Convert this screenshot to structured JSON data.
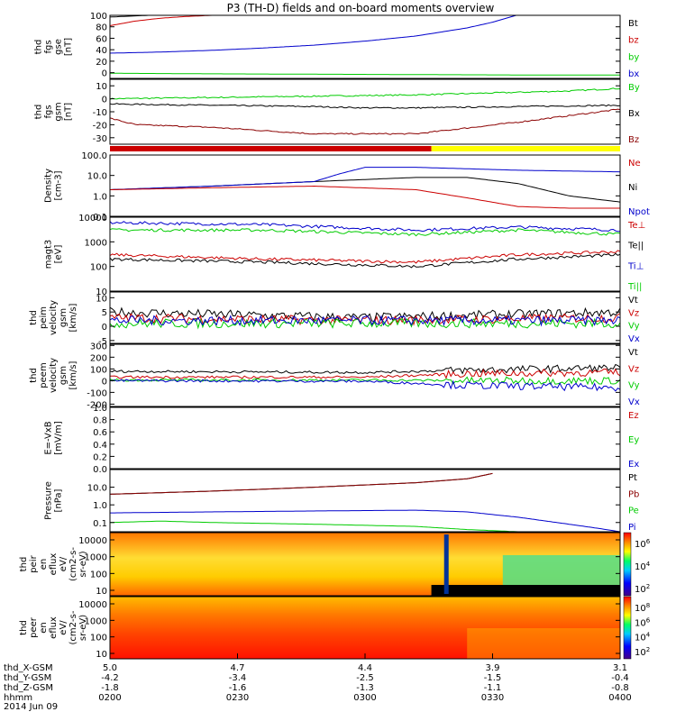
{
  "chart_data": {
    "type": "line",
    "title": "P3 (TH-D) fields and on-board moments overview",
    "colors": {
      "black": "#000000",
      "red": "#cc0000",
      "darkred": "#8b0000",
      "green": "#00cc00",
      "blue": "#0000cc",
      "yellow": "#ffff00"
    },
    "panels": [
      {
        "id": "fgs-gse",
        "ylabel": [
          "thd",
          "fgs",
          "gse",
          "[nT]"
        ],
        "ylim": [
          -10,
          100
        ],
        "ticks": [
          "100",
          "80",
          "60",
          "40",
          "20",
          "0"
        ],
        "legend": [
          {
            "label": "Bt",
            "color": "black"
          },
          {
            "label": "bz",
            "color": "red"
          },
          {
            "label": "by",
            "color": "green"
          },
          {
            "label": "bx",
            "color": "blue"
          }
        ],
        "series": [
          {
            "name": "Bt",
            "color": "black",
            "x": [
              0,
              0.05,
              0.1
            ],
            "y": [
              97,
              99,
              101
            ]
          },
          {
            "name": "bz",
            "color": "red",
            "x": [
              0,
              0.05,
              0.1,
              0.15,
              0.2,
              0.3
            ],
            "y": [
              82,
              90,
              95,
              98,
              100,
              103
            ]
          },
          {
            "name": "by",
            "color": "green",
            "x": [
              0,
              0.2,
              0.5,
              0.8,
              1.0
            ],
            "y": [
              -1,
              -2,
              -3,
              -4,
              -4
            ]
          },
          {
            "name": "bx",
            "color": "blue",
            "x": [
              0,
              0.1,
              0.2,
              0.3,
              0.4,
              0.5,
              0.6,
              0.7,
              0.75,
              0.8
            ],
            "y": [
              34,
              36,
              39,
              43,
              48,
              55,
              64,
              78,
              88,
              101
            ]
          }
        ]
      },
      {
        "id": "fgs-gsm",
        "ylabel": [
          "thd",
          "fgs",
          "gsm",
          "[nT]"
        ],
        "ylim": [
          -35,
          15
        ],
        "ticks": [
          "10",
          "0",
          "-10",
          "-20",
          "-30"
        ],
        "legend": [
          {
            "label": "By",
            "color": "green"
          },
          {
            "label": "Bx",
            "color": "black"
          },
          {
            "label": "Bz",
            "color": "darkred"
          }
        ],
        "series": [
          {
            "name": "By",
            "color": "green",
            "x": [
              0,
              0.2,
              0.4,
              0.6,
              0.8,
              0.9,
              1.0
            ],
            "y": [
              0,
              1,
              2,
              3,
              5,
              6,
              8
            ]
          },
          {
            "name": "Bx",
            "color": "black",
            "x": [
              0,
              0.2,
              0.4,
              0.5,
              0.6,
              0.8,
              1.0
            ],
            "y": [
              -4,
              -5,
              -6,
              -7,
              -7,
              -6,
              -5
            ]
          },
          {
            "name": "Bz",
            "color": "darkred",
            "x": [
              0,
              0.05,
              0.2,
              0.4,
              0.6,
              0.8,
              1.0
            ],
            "y": [
              -15,
              -20,
              -22,
              -27,
              -27,
              -18,
              -8
            ]
          }
        ]
      },
      {
        "id": "density",
        "ylabel": [
          "Density",
          "[cm-3]"
        ],
        "log": true,
        "ylim": [
          0.1,
          100
        ],
        "ticks": [
          "100.0",
          "10.0",
          "1.0",
          "0.1"
        ],
        "legend": [
          {
            "label": "Ne",
            "color": "red"
          },
          {
            "label": "Ni",
            "color": "black"
          },
          {
            "label": "Npot",
            "color": "blue"
          }
        ],
        "series": [
          {
            "name": "Ni",
            "color": "black",
            "x": [
              0,
              0.2,
              0.4,
              0.6,
              0.7,
              0.8,
              0.9,
              1.0
            ],
            "y": [
              2,
              3,
              5,
              8,
              8,
              4,
              1,
              0.5
            ]
          },
          {
            "name": "Npot",
            "color": "blue",
            "x": [
              0,
              0.2,
              0.4,
              0.45,
              0.5,
              0.6,
              0.8,
              1.0
            ],
            "y": [
              2,
              3,
              5,
              12,
              25,
              25,
              18,
              15
            ]
          },
          {
            "name": "Ne",
            "color": "red",
            "x": [
              0,
              0.2,
              0.4,
              0.6,
              0.7,
              0.8,
              0.9,
              1.0
            ],
            "y": [
              2,
              2.5,
              3,
              2,
              0.8,
              0.3,
              0.25,
              0.25
            ]
          }
        ]
      },
      {
        "id": "temp",
        "ylabel": [
          "magt3",
          "[eV]"
        ],
        "log": true,
        "ylim": [
          10,
          10000
        ],
        "ticks": [
          "10000",
          "1000",
          "100",
          "10"
        ],
        "legend": [
          {
            "label": "Te⊥",
            "color": "red"
          },
          {
            "label": "Te||",
            "color": "black"
          },
          {
            "label": "Ti⊥",
            "color": "blue"
          },
          {
            "label": "Ti||",
            "color": "green"
          }
        ],
        "series": [
          {
            "name": "Ti⊥",
            "color": "blue",
            "x": [
              0,
              0.3,
              0.6,
              0.8,
              1.0
            ],
            "y": [
              6000,
              5000,
              3000,
              4000,
              3000
            ]
          },
          {
            "name": "Ti||",
            "color": "green",
            "x": [
              0,
              0.3,
              0.6,
              0.8,
              1.0
            ],
            "y": [
              3000,
              3000,
              2000,
              3000,
              2000
            ]
          },
          {
            "name": "Te⊥",
            "color": "red",
            "x": [
              0,
              0.3,
              0.6,
              0.8,
              1.0
            ],
            "y": [
              300,
              200,
              150,
              300,
              400
            ]
          },
          {
            "name": "Te||",
            "color": "black",
            "x": [
              0,
              0.3,
              0.6,
              0.8,
              1.0
            ],
            "y": [
              200,
              150,
              100,
              200,
              300
            ]
          }
        ]
      },
      {
        "id": "peim",
        "ylabel": [
          "thd",
          "peim",
          "velocity",
          "gsm",
          "[km/s]"
        ],
        "ylim": [
          -6,
          12
        ],
        "ticks": [
          "10",
          "5",
          "0",
          "-5"
        ],
        "legend": [
          {
            "label": "Vt",
            "color": "black"
          },
          {
            "label": "Vz",
            "color": "red"
          },
          {
            "label": "Vy",
            "color": "green"
          },
          {
            "label": "Vx",
            "color": "blue"
          }
        ],
        "series": [
          {
            "name": "Vt",
            "color": "black",
            "x": [
              0,
              0.5,
              1.0
            ],
            "y": [
              5,
              3,
              5
            ]
          },
          {
            "name": "Vz",
            "color": "red",
            "x": [
              0,
              0.5,
              1.0
            ],
            "y": [
              3,
              2,
              3
            ]
          },
          {
            "name": "Vy",
            "color": "green",
            "x": [
              0,
              0.5,
              1.0
            ],
            "y": [
              1,
              1,
              1
            ]
          },
          {
            "name": "Vx",
            "color": "blue",
            "x": [
              0,
              0.5,
              1.0
            ],
            "y": [
              2,
              2,
              2
            ]
          }
        ]
      },
      {
        "id": "peem",
        "ylabel": [
          "thd",
          "peem",
          "velocity",
          "gsm",
          "[km/s]"
        ],
        "ylim": [
          -220,
          310
        ],
        "ticks": [
          "300",
          "200",
          "100",
          "0",
          "-100",
          "-200"
        ],
        "legend": [
          {
            "label": "Vt",
            "color": "black"
          },
          {
            "label": "Vz",
            "color": "red"
          },
          {
            "label": "Vy",
            "color": "green"
          },
          {
            "label": "Vx",
            "color": "blue"
          }
        ],
        "series": [
          {
            "name": "Vt",
            "color": "black",
            "x": [
              0,
              0.5,
              0.7,
              1.0
            ],
            "y": [
              80,
              70,
              90,
              110
            ]
          },
          {
            "name": "Vz",
            "color": "red",
            "x": [
              0,
              0.5,
              0.7,
              1.0
            ],
            "y": [
              30,
              30,
              60,
              70
            ]
          },
          {
            "name": "Vy",
            "color": "green",
            "x": [
              0,
              0.5,
              0.7,
              1.0
            ],
            "y": [
              5,
              5,
              0,
              0
            ]
          },
          {
            "name": "Vx",
            "color": "blue",
            "x": [
              0,
              0.5,
              0.7,
              1.0
            ],
            "y": [
              0,
              -5,
              -40,
              -60
            ]
          }
        ]
      },
      {
        "id": "efield",
        "ylabel": [
          "E=-VxB",
          "[mV/m]"
        ],
        "ylim": [
          0,
          1
        ],
        "ticks": [
          "1.0",
          "0.8",
          "0.6",
          "0.4",
          "0.2",
          "0.0"
        ],
        "legend": [
          {
            "label": "Ez",
            "color": "red"
          },
          {
            "label": "Ey",
            "color": "green"
          },
          {
            "label": "Ex",
            "color": "blue"
          }
        ],
        "series": []
      },
      {
        "id": "pressure",
        "ylabel": [
          "Pressure",
          "[nPa]"
        ],
        "log": true,
        "ylim": [
          0.03,
          100
        ],
        "ticks": [
          "10.0",
          "1.0",
          "0.1"
        ],
        "legend": [
          {
            "label": "Pt",
            "color": "black"
          },
          {
            "label": "Pb",
            "color": "darkred"
          },
          {
            "label": "Pe",
            "color": "green"
          },
          {
            "label": "Pi",
            "color": "blue"
          }
        ],
        "series": [
          {
            "name": "Pt",
            "color": "black",
            "x": [
              0,
              0.2,
              0.4,
              0.6,
              0.7,
              0.75
            ],
            "y": [
              4,
              6,
              10,
              18,
              30,
              60
            ]
          },
          {
            "name": "Pb",
            "color": "darkred",
            "x": [
              0,
              0.2,
              0.4,
              0.6,
              0.7,
              0.75
            ],
            "y": [
              4,
              6,
              10,
              18,
              30,
              60
            ]
          },
          {
            "name": "Pi",
            "color": "blue",
            "x": [
              0,
              0.2,
              0.4,
              0.6,
              0.7,
              0.8,
              0.9,
              0.95,
              1.0
            ],
            "y": [
              0.35,
              0.4,
              0.45,
              0.5,
              0.4,
              0.2,
              0.08,
              0.05,
              0.03
            ]
          },
          {
            "name": "Pe",
            "color": "green",
            "x": [
              0,
              0.1,
              0.2,
              0.4,
              0.6,
              0.7,
              0.8,
              1.0
            ],
            "y": [
              0.1,
              0.12,
              0.1,
              0.08,
              0.06,
              0.04,
              0.03,
              0.03
            ]
          }
        ]
      },
      {
        "id": "peir",
        "ylabel": [
          "thd",
          "peir",
          "en",
          "eflux",
          "eV/",
          "(cm2-s-",
          "sr-eV)"
        ],
        "spectrogram": true,
        "ticks": [
          "10000",
          "1000",
          "100",
          "10"
        ],
        "colorbar": [
          "10^6",
          "10^4",
          "10^2"
        ]
      },
      {
        "id": "peer",
        "ylabel": [
          "thd",
          "peer",
          "en",
          "eflux",
          "eV/",
          "(cm2-s-",
          "sr-eV)"
        ],
        "spectrogram": true,
        "ticks": [
          "10000",
          "1000",
          "100",
          "10"
        ],
        "colorbar": [
          "10^8",
          "10^6",
          "10^4",
          "10^2"
        ]
      }
    ],
    "mode_bar": [
      {
        "start": 0,
        "end": 0.63,
        "color": "red"
      },
      {
        "start": 0.63,
        "end": 1.0,
        "color": "yellow"
      }
    ],
    "xaxis": {
      "row_labels": [
        "thd_X-GSM",
        "thd_Y-GSM",
        "thd_Z-GSM",
        "hhmm",
        "2014 Jun 09"
      ],
      "columns": [
        {
          "x": 0.0,
          "values": [
            "5.0",
            "-4.2",
            "-1.8",
            "0200"
          ]
        },
        {
          "x": 0.25,
          "values": [
            "4.7",
            "-3.4",
            "-1.6",
            "0230"
          ]
        },
        {
          "x": 0.5,
          "values": [
            "4.4",
            "-2.5",
            "-1.3",
            "0300"
          ]
        },
        {
          "x": 0.75,
          "values": [
            "3.9",
            "-1.5",
            "-1.1",
            "0330"
          ]
        },
        {
          "x": 1.0,
          "values": [
            "3.1",
            "-0.4",
            "-0.8",
            "0400"
          ]
        }
      ]
    }
  }
}
